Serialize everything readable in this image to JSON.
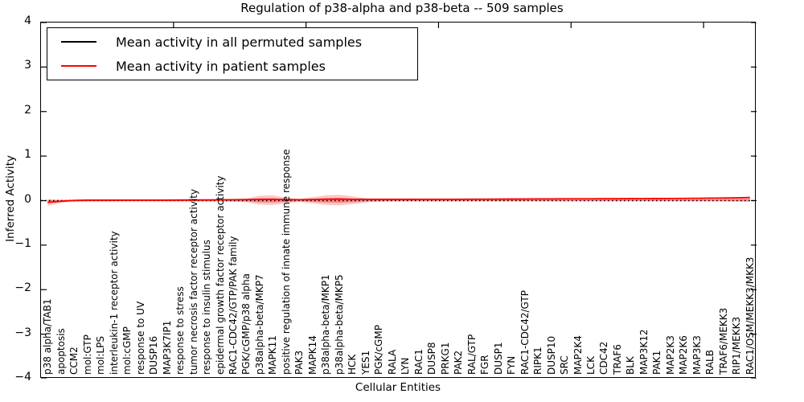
{
  "title": "Regulation of p38-alpha and p38-beta -- 509 samples",
  "legend": {
    "entries": [
      {
        "label": "Mean activity in all permuted samples",
        "color": "#000000"
      },
      {
        "label": "Mean activity in patient samples",
        "color": "#ff0000"
      }
    ]
  },
  "chart_data": {
    "type": "line",
    "title": "Regulation of p38-alpha and p38-beta -- 509 samples",
    "xlabel": "Cellular Entities",
    "ylabel": "Inferred Activity",
    "ylim": [
      -4,
      4
    ],
    "y_ticks": [
      4,
      3,
      2,
      1,
      0,
      -1,
      -2,
      -3,
      -4
    ],
    "y_tick_labels": [
      "4",
      "3",
      "2",
      "1",
      "0",
      "−1",
      "−2",
      "−3",
      "−4"
    ],
    "x_major_tick_indices": [
      10,
      20,
      30,
      40,
      50
    ],
    "grid": false,
    "legend_position": "upper left",
    "categories": [
      "p38 alpha/TAB1",
      "apoptosis",
      "CCM2",
      "mol:GTP",
      "mol:LPS",
      "interleukin-1 receptor activity",
      "mol:cGMP",
      "response to UV",
      "DUSP16",
      "MAP3K7IP1",
      "response to stress",
      "tumor necrosis factor receptor activity",
      "response to insulin stimulus",
      "epidermal growth factor receptor activity",
      "RAC1-CDC42/GTP/PAK family",
      "PGK/cGMP/p38 alpha",
      "p38alpha-beta/MKP7",
      "MAPK11",
      "positive regulation of innate immune response",
      "PAK3",
      "MAPK14",
      "p38alpha-beta/MKP1",
      "p38alpha-beta/MKP5",
      "HCK",
      "YES1",
      "PGK/cGMP",
      "RALA",
      "LYN",
      "RAC1",
      "DUSP8",
      "PRKG1",
      "PAK2",
      "RAL/GTP",
      "FGR",
      "DUSP1",
      "FYN",
      "RAC1-CDC42/GTP",
      "RIPK1",
      "DUSP10",
      "SRC",
      "MAP2K4",
      "LCK",
      "CDC42",
      "TRAF6",
      "BLK",
      "MAP3K12",
      "PAK1",
      "MAP2K3",
      "MAP2K6",
      "MAP3K3",
      "RALB",
      "TRAF6/MEKK3",
      "RIP1/MEKK3",
      "RAC1/OSM/MEKK3/MKK3"
    ],
    "series": [
      {
        "name": "Mean activity in all permuted samples",
        "color": "#000000",
        "style": "dotted",
        "constant": 0.0
      },
      {
        "name": "Mean activity in patient samples",
        "color": "#ff0000",
        "style": "solid",
        "values": [
          -0.04,
          -0.015,
          0.005,
          0.01,
          0.01,
          0.01,
          0.01,
          0.01,
          0.01,
          0.01,
          0.012,
          0.015,
          0.015,
          0.018,
          0.02,
          0.022,
          0.028,
          0.028,
          0.022,
          0.02,
          0.025,
          0.032,
          0.035,
          0.03,
          0.028,
          0.028,
          0.028,
          0.028,
          0.03,
          0.03,
          0.03,
          0.03,
          0.032,
          0.032,
          0.034,
          0.035,
          0.036,
          0.038,
          0.038,
          0.04,
          0.04,
          0.04,
          0.042,
          0.042,
          0.044,
          0.045,
          0.046,
          0.048,
          0.05,
          0.052,
          0.055,
          0.058,
          0.062,
          0.07
        ]
      }
    ],
    "band": {
      "name": "patient activity spread",
      "color": "rgba(255,0,0,0.22)",
      "inner_color": "rgba(225,25,25,0.35)",
      "inner_scale": 0.45,
      "upper": [
        0.03,
        0.02,
        0.02,
        0.02,
        0.02,
        0.018,
        0.016,
        0.016,
        0.016,
        0.018,
        0.02,
        0.022,
        0.02,
        0.024,
        0.03,
        0.05,
        0.11,
        0.12,
        0.07,
        0.035,
        0.08,
        0.12,
        0.13,
        0.1,
        0.05,
        0.035,
        0.03,
        0.03,
        0.03,
        0.03,
        0.03,
        0.03,
        0.03,
        0.032,
        0.034,
        0.04,
        0.05,
        0.052,
        0.052,
        0.05,
        0.045,
        0.045,
        0.045,
        0.045,
        0.046,
        0.048,
        0.05,
        0.05,
        0.052,
        0.054,
        0.056,
        0.06,
        0.066,
        0.09
      ],
      "lower": [
        -0.12,
        -0.05,
        -0.028,
        -0.022,
        -0.02,
        -0.018,
        -0.016,
        -0.016,
        -0.016,
        -0.018,
        -0.02,
        -0.02,
        -0.02,
        -0.022,
        -0.026,
        -0.04,
        -0.09,
        -0.1,
        -0.06,
        -0.03,
        -0.06,
        -0.1,
        -0.11,
        -0.08,
        -0.04,
        -0.028,
        -0.022,
        -0.02,
        -0.02,
        -0.02,
        -0.02,
        -0.02,
        -0.02,
        -0.02,
        -0.02,
        -0.02,
        -0.02,
        -0.02,
        -0.02,
        -0.02,
        -0.02,
        -0.02,
        -0.02,
        -0.02,
        -0.02,
        -0.02,
        -0.02,
        -0.02,
        -0.02,
        -0.02,
        -0.02,
        -0.022,
        -0.024,
        -0.03
      ]
    }
  }
}
